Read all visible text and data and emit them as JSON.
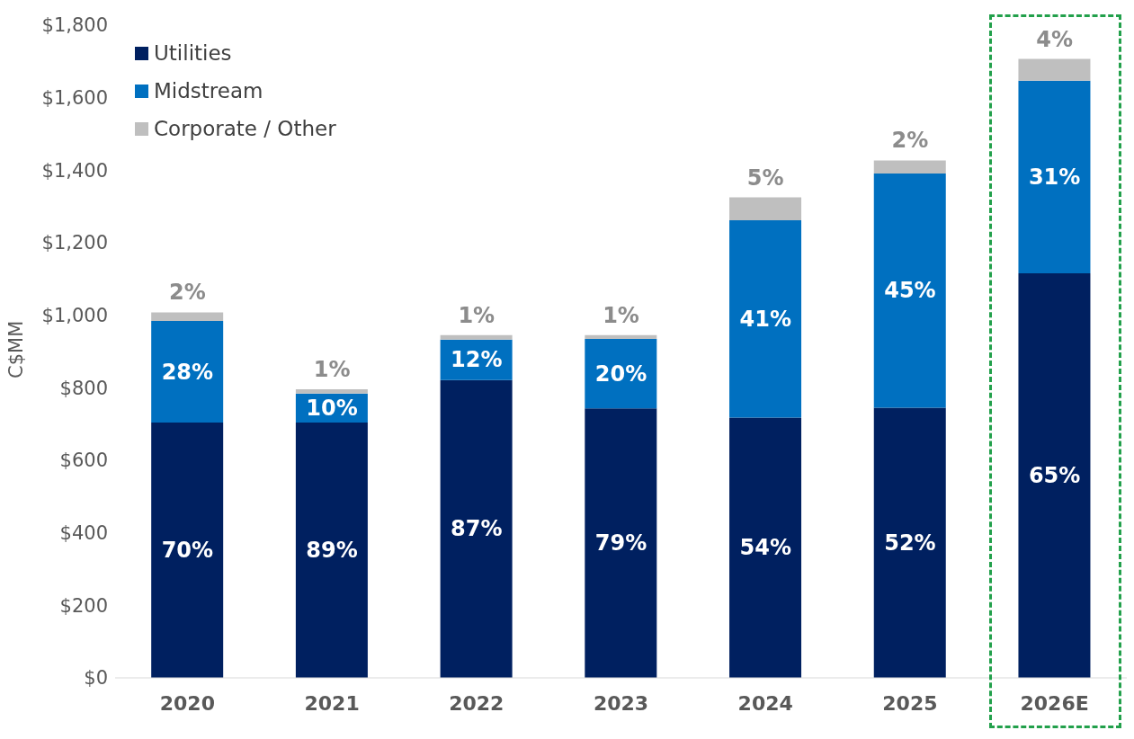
{
  "chart_data": {
    "type": "bar",
    "stacked": true,
    "ylabel": "C$MM",
    "categories": [
      "2020",
      "2021",
      "2022",
      "2023",
      "2024",
      "2025",
      "2026E"
    ],
    "series": [
      {
        "name": "Utilities",
        "color": "#002060",
        "values": [
          704,
          704,
          821,
          743,
          718,
          745,
          1116
        ]
      },
      {
        "name": "Midstream",
        "color": "#0070c0",
        "values": [
          280,
          80,
          112,
          192,
          544,
          646,
          531
        ]
      },
      {
        "name": "Corporate / Other",
        "color": "#bfbfbf",
        "values": [
          24,
          12,
          12,
          10,
          63,
          36,
          60
        ]
      }
    ],
    "annotations": [
      "70%",
      "28%",
      "2%",
      "89%",
      "10%",
      "1%",
      "87%",
      "12%",
      "1%",
      "79%",
      "20%",
      "1%",
      "54%",
      "41%",
      "5%",
      "52%",
      "45%",
      "2%",
      "65%",
      "31%",
      "4%"
    ],
    "ylim": [
      0,
      1800
    ],
    "yticks": [
      {
        "value": 0,
        "label": "$0"
      },
      {
        "value": 200,
        "label": "$200"
      },
      {
        "value": 400,
        "label": "$400"
      },
      {
        "value": 600,
        "label": "$600"
      },
      {
        "value": 800,
        "label": "$800"
      },
      {
        "value": 1000,
        "label": "$1,000"
      },
      {
        "value": 1200,
        "label": "$1,200"
      },
      {
        "value": 1400,
        "label": "$1,400"
      },
      {
        "value": 1600,
        "label": "$1,600"
      },
      {
        "value": 1800,
        "label": "$1,800"
      }
    ],
    "grid": false,
    "legend": "top left"
  }
}
